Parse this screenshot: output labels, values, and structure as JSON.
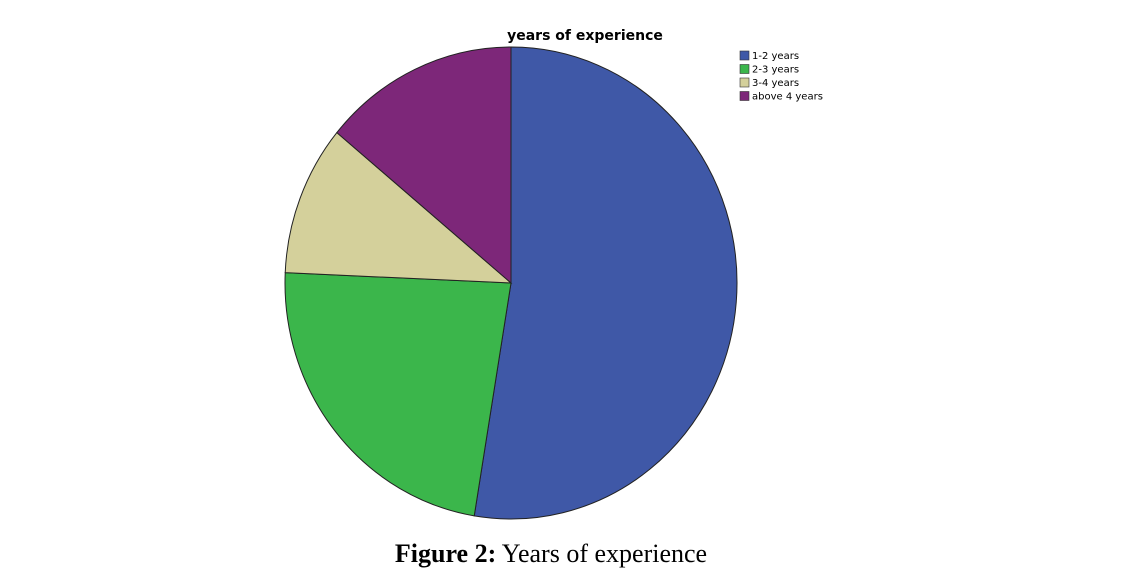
{
  "chart_data": {
    "type": "pie",
    "title": "years of experience",
    "categories": [
      "1-2 years",
      "2-3 years",
      "3-4 years",
      "above 4 years"
    ],
    "values": [
      52.6,
      23.1,
      10.3,
      14.0
    ],
    "colors": [
      "#3f58a7",
      "#3bb64b",
      "#d4d09b",
      "#7d2779"
    ],
    "legend": "top-right"
  },
  "caption": {
    "label": "Figure 2:",
    "text": "Years of experience"
  }
}
